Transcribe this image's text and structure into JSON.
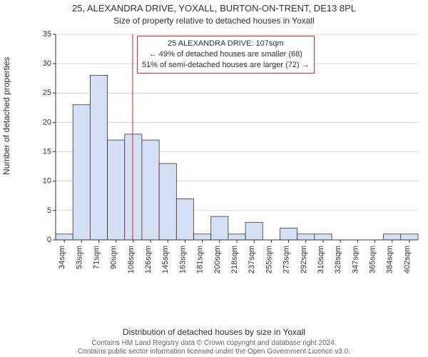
{
  "title": "25, ALEXANDRA DRIVE, YOXALL, BURTON-ON-TRENT, DE13 8PL",
  "subtitle": "Size of property relative to detached houses in Yoxall",
  "ylabel": "Number of detached properties",
  "xlabel": "Distribution of detached houses by size in Yoxall",
  "footer1": "Contains HM Land Registry data © Crown copyright and database right 2024.",
  "footer2": "Contains public sector information licensed under the Open Government Licence v3.0.",
  "info_box": {
    "line1": "25 ALEXANDRA DRIVE: 107sqm",
    "line2": "← 49% of detached houses are smaller (68)",
    "line3": "51% of semi-detached houses are larger (72) →"
  },
  "chart": {
    "type": "histogram",
    "ylim": [
      0,
      35
    ],
    "ytick_step": 5,
    "background_color": "#ffffff",
    "grid_color": "#b0b0b0",
    "axis_color": "#333333",
    "bar_fill": "#d6e0f5",
    "bar_stroke": "#333333",
    "marker_color": "#e02020",
    "marker_value": 107,
    "bin_start": 25,
    "bin_width": 18.375,
    "bin_count": 21,
    "counts": [
      1,
      23,
      28,
      17,
      18,
      17,
      13,
      7,
      1,
      4,
      1,
      3,
      0,
      2,
      1,
      1,
      0,
      0,
      0,
      1,
      1
    ],
    "xtick_labels": [
      "34sqm",
      "53sqm",
      "71sqm",
      "90sqm",
      "108sqm",
      "126sqm",
      "145sqm",
      "163sqm",
      "181sqm",
      "200sqm",
      "218sqm",
      "237sqm",
      "255sqm",
      "273sqm",
      "292sqm",
      "310sqm",
      "328sqm",
      "347sqm",
      "365sqm",
      "384sqm",
      "402sqm"
    ],
    "label_fontsize": 11,
    "title_fontsize": 13
  }
}
